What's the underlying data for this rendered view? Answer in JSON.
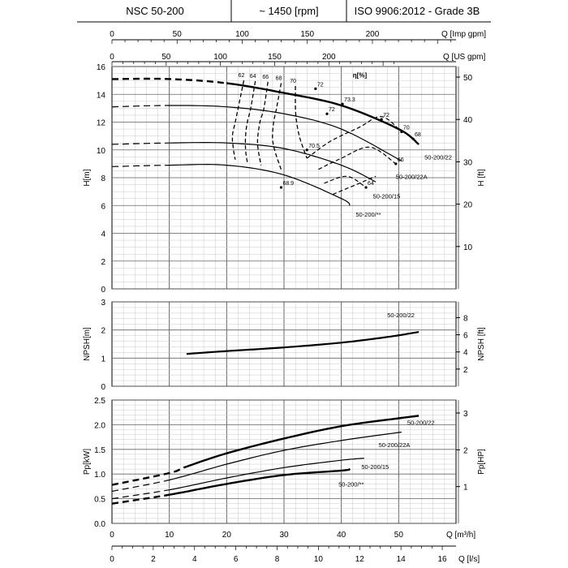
{
  "header": {
    "model": "NSC 50-200",
    "speed": "~ 1450 [rpm]",
    "standard": "ISO 9906:2012 - Grade 3B"
  },
  "chart_data": [
    {
      "type": "line",
      "panel": "head",
      "ylabel": "H[m]",
      "ylabel_right": "H [ft]",
      "top_axis_1_label": "Q [Imp gpm]",
      "top_axis_1_ticks": [
        "0",
        "50",
        "100",
        "150",
        "200"
      ],
      "top_axis_1_values": [
        0,
        50,
        100,
        150,
        200
      ],
      "top_axis_2_label": "Q [US gpm]",
      "top_axis_2_ticks": [
        "0",
        "50",
        "100",
        "150",
        "200"
      ],
      "top_axis_2_values": [
        0,
        50,
        100,
        150,
        200
      ],
      "xlim": [
        0,
        60
      ],
      "ylim": [
        0,
        16
      ],
      "yticks": [
        "0",
        "2",
        "4",
        "6",
        "8",
        "10",
        "12",
        "14",
        "16"
      ],
      "yticks_right": [
        "10",
        "20",
        "30",
        "40",
        "50"
      ],
      "yticks_right_values": [
        10,
        20,
        30,
        40,
        50
      ],
      "grid": true,
      "efficiency_label": "η[%]",
      "series": [
        {
          "name": "50-200/22",
          "style": "bold",
          "x": [
            0,
            10,
            20,
            30,
            40,
            50,
            53.5
          ],
          "values": [
            15.1,
            15.1,
            14.8,
            14.1,
            13.2,
            11.5,
            10.4
          ],
          "dashed_until": 20
        },
        {
          "name": "50-200/22A",
          "style": "regular",
          "x": [
            0,
            10,
            20,
            30,
            40,
            50.5
          ],
          "values": [
            13.1,
            13.2,
            13.1,
            12.6,
            11.5,
            9.2
          ],
          "dashed_until": 10
        },
        {
          "name": "50-200/15",
          "style": "regular",
          "x": [
            0,
            10,
            20,
            30,
            40,
            46
          ],
          "values": [
            10.4,
            10.5,
            10.5,
            10.1,
            8.9,
            7.7
          ],
          "dashed_until": 10
        },
        {
          "name": "50-200/**",
          "style": "regular",
          "x": [
            0,
            10,
            20,
            30,
            40,
            41.5
          ],
          "values": [
            8.8,
            8.9,
            8.9,
            8.2,
            6.5,
            6.0
          ],
          "dashed_until": 10
        }
      ],
      "iso_efficiency": [
        {
          "label": "62",
          "x": [
            23,
            22,
            21.5,
            21,
            21.2,
            21.5
          ],
          "values": [
            15.0,
            13.0,
            12.0,
            11.0,
            10.0,
            9.3
          ]
        },
        {
          "label": "64",
          "x": [
            25,
            24.2,
            23.6,
            23.3,
            23.3,
            23.6
          ],
          "values": [
            14.95,
            13.0,
            12.0,
            11.0,
            10.0,
            9.1
          ]
        },
        {
          "label": "66",
          "x": [
            27.2,
            26.5,
            25.8,
            25.4,
            25.5,
            26.0
          ],
          "values": [
            14.9,
            13.0,
            12.0,
            10.8,
            10.0,
            8.9
          ]
        },
        {
          "label": "68",
          "x": [
            29.5,
            28.7,
            28.2,
            28.0,
            28.5,
            29.5
          ],
          "values": [
            14.8,
            13.0,
            12.0,
            10.8,
            9.8,
            8.6
          ]
        },
        {
          "label": "70",
          "x": [
            32.0,
            32.0,
            32.2,
            32.8,
            34.0
          ],
          "values": [
            14.6,
            13.0,
            12.0,
            10.8,
            9.4
          ]
        }
      ],
      "efficiency_markers": [
        {
          "label": "72",
          "x": 35.5,
          "y": 14.4
        },
        {
          "label": "73.3",
          "x": 40.2,
          "y": 13.3
        },
        {
          "label": "72",
          "x": 37.5,
          "y": 12.6
        },
        {
          "label": "72",
          "x": 47,
          "y": 12.2
        },
        {
          "label": "70.5",
          "x": 34,
          "y": 10.0
        },
        {
          "label": "70",
          "x": 50.5,
          "y": 11.3
        },
        {
          "label": "68",
          "x": 52.5,
          "y": 10.8
        },
        {
          "label": "66",
          "x": 49.5,
          "y": 9.0
        },
        {
          "label": "64",
          "x": 44.3,
          "y": 7.3
        },
        {
          "label": "68.9",
          "x": 29.5,
          "y": 7.3
        }
      ],
      "annotations": [
        "50-200/22",
        "50-200/22A",
        "50-200/15",
        "50-200/**"
      ]
    },
    {
      "type": "line",
      "panel": "npsh",
      "ylabel": "NPSH[m]",
      "ylabel_right": "NPSH [ft]",
      "xlim": [
        0,
        60
      ],
      "ylim": [
        0,
        3
      ],
      "yticks": [
        "0",
        "1",
        "2",
        "3"
      ],
      "yticks_right": [
        "2",
        "4",
        "6",
        "8"
      ],
      "yticks_right_values": [
        2,
        4,
        6,
        8
      ],
      "grid": true,
      "series": [
        {
          "name": "50-200/22",
          "x": [
            13,
            20,
            30,
            40,
            48,
            53.5
          ],
          "values": [
            1.15,
            1.25,
            1.38,
            1.55,
            1.75,
            1.93
          ]
        }
      ]
    },
    {
      "type": "line",
      "panel": "power",
      "ylabel": "Pp[kW]",
      "ylabel_right": "Pp[HP]",
      "xlabel": "Q [m³/h]",
      "xlabel_2": "Q [l/s]",
      "xlim": [
        0,
        60
      ],
      "ylim": [
        0,
        2.5
      ],
      "xticks": [
        "0",
        "10",
        "20",
        "30",
        "40",
        "50"
      ],
      "xticks_values": [
        0,
        10,
        20,
        30,
        40,
        50
      ],
      "xticks_2": [
        "0",
        "2",
        "4",
        "6",
        "8",
        "10",
        "12",
        "14",
        "16"
      ],
      "xticks_2_values": [
        0,
        2,
        4,
        6,
        8,
        10,
        12,
        14,
        16
      ],
      "yticks": [
        "0.0",
        "0.5",
        "1.0",
        "1.5",
        "2.0",
        "2.5"
      ],
      "yticks_right": [
        "1",
        "2",
        "3"
      ],
      "yticks_right_values": [
        1,
        2,
        3
      ],
      "grid": true,
      "series": [
        {
          "name": "50-200/22",
          "style": "bold",
          "x": [
            0,
            10,
            13,
            20,
            30,
            40,
            50,
            53.5
          ],
          "values": [
            0.78,
            1.02,
            1.15,
            1.42,
            1.72,
            1.97,
            2.13,
            2.18
          ],
          "dashed_until": 13
        },
        {
          "name": "50-200/22A",
          "style": "regular",
          "x": [
            0,
            10,
            20,
            30,
            40,
            50.5
          ],
          "values": [
            0.65,
            0.88,
            1.2,
            1.48,
            1.68,
            1.85
          ],
          "dashed_until": 10
        },
        {
          "name": "50-200/15",
          "style": "regular",
          "x": [
            0,
            10,
            20,
            30,
            40,
            44
          ],
          "values": [
            0.5,
            0.68,
            0.92,
            1.13,
            1.28,
            1.32
          ],
          "dashed_until": 10
        },
        {
          "name": "50-200/**",
          "style": "bold",
          "x": [
            0,
            10,
            20,
            30,
            40,
            41.5
          ],
          "values": [
            0.4,
            0.58,
            0.8,
            0.98,
            1.07,
            1.1
          ],
          "dashed_until": 10
        }
      ]
    }
  ]
}
